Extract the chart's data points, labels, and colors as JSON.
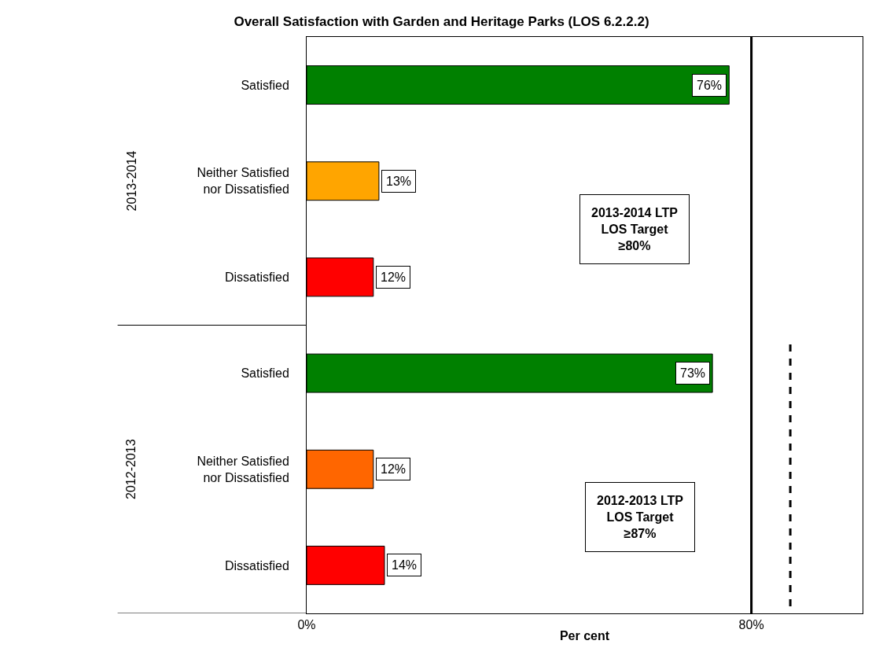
{
  "chart_data": {
    "type": "bar",
    "orientation": "horizontal",
    "title": "Overall Satisfaction with Garden and Heritage Parks (LOS 6.2.2.2)",
    "xlabel": "Per cent",
    "categories": [
      "Satisfied",
      "Neither Satisfied\nnor Dissatisfied",
      "Dissatisfied",
      "Satisfied",
      "Neither Satisfied\nnor Dissatisfied",
      "Dissatisfied"
    ],
    "values": [
      76,
      13,
      12,
      73,
      12,
      14
    ],
    "colors": [
      "#008000",
      "#ffa500",
      "#ff0000",
      "#008000",
      "#ff6600",
      "#ff0000"
    ],
    "value_labels": [
      "76%",
      "13%",
      "12%",
      "73%",
      "12%",
      "14%"
    ],
    "xlim": [
      0,
      100
    ],
    "xticks": [
      {
        "value": 0,
        "label": "0%"
      },
      {
        "value": 80,
        "label": "80%"
      }
    ],
    "annotations": [
      "2013-2014",
      "2012-2013",
      "2013-2014 LTP\nLOS Target\n≥80%",
      "2012-2013 LTP\nLOS Target\n≥87%"
    ],
    "ref_lines": [
      {
        "axis": "x",
        "value": 80,
        "color": "#000000",
        "line_style": "solid"
      },
      {
        "axis": "x",
        "value": 87,
        "color": "#000000",
        "line_style": "dashed"
      }
    ]
  }
}
